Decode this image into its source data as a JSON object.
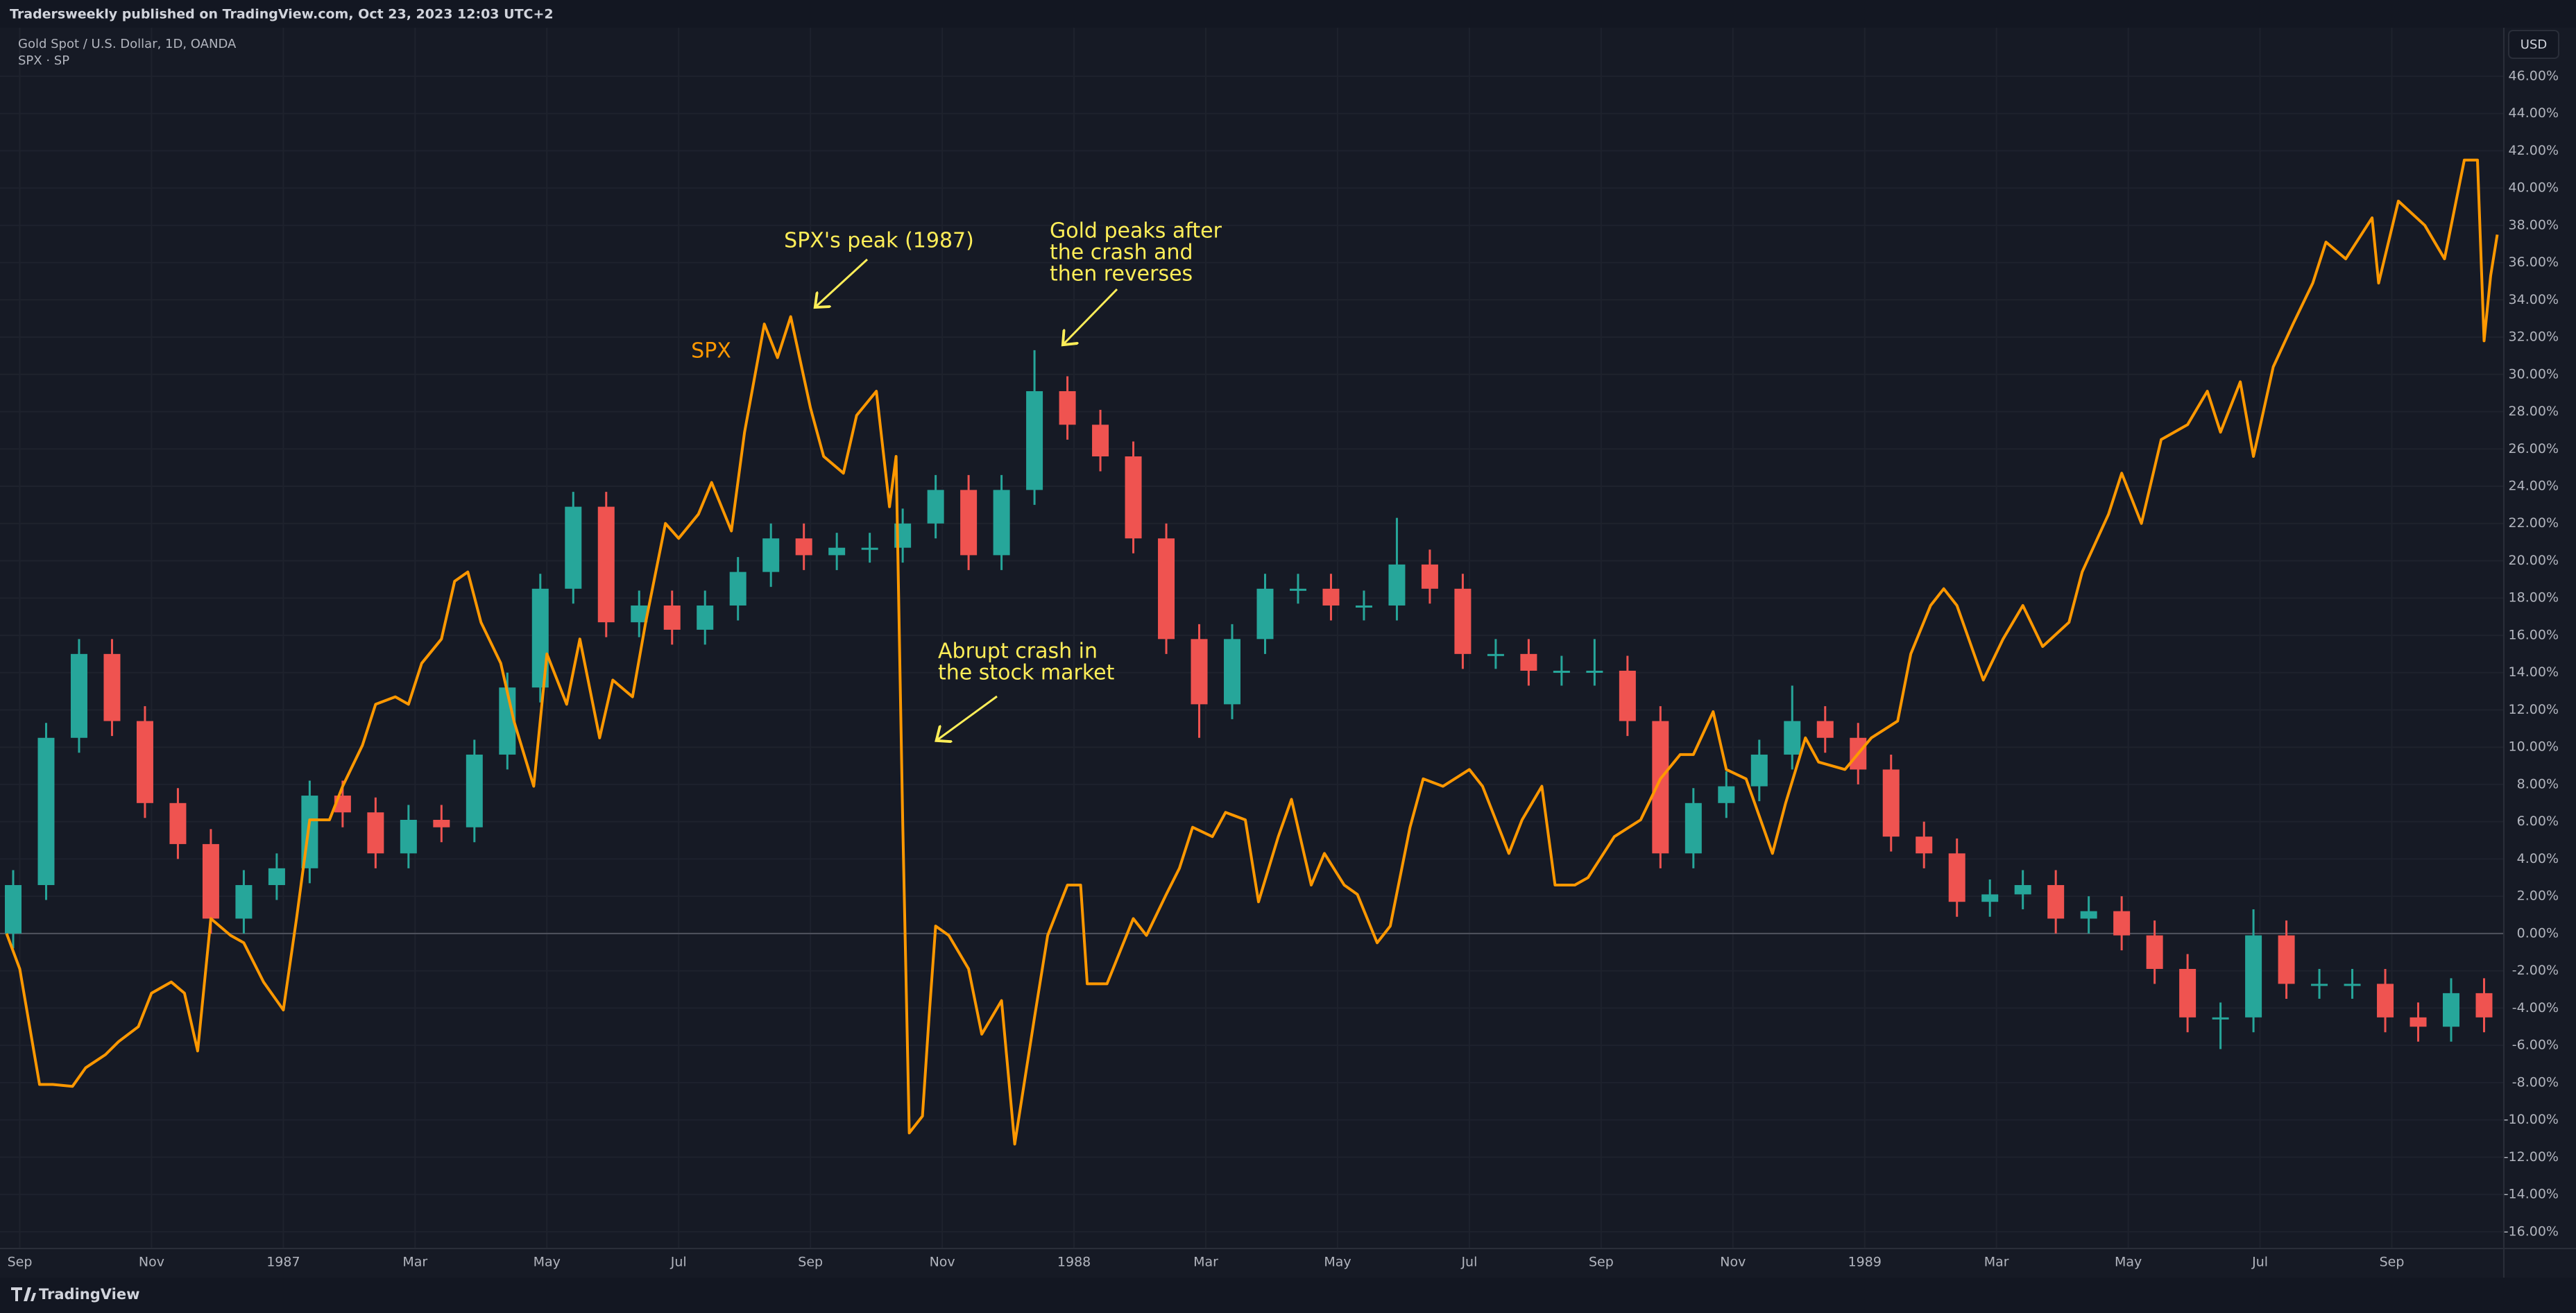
{
  "chart_data": {
    "type": "combo",
    "header": "Tradersweekly published on TradingView.com, Oct 23, 2023 12:03 UTC+2",
    "currency": "USD",
    "brand": "TradingView",
    "grid": true,
    "xlim": [
      -0.3,
      37.7
    ],
    "ylim": [
      -16.9,
      48.6
    ],
    "xticks": [
      {
        "value": 0,
        "label": "Sep"
      },
      {
        "value": 2,
        "label": "Nov"
      },
      {
        "value": 4,
        "label": "1987"
      },
      {
        "value": 6,
        "label": "Mar"
      },
      {
        "value": 8,
        "label": "May"
      },
      {
        "value": 10,
        "label": "Jul"
      },
      {
        "value": 12,
        "label": "Sep"
      },
      {
        "value": 14,
        "label": "Nov"
      },
      {
        "value": 16,
        "label": "1988"
      },
      {
        "value": 18,
        "label": "Mar"
      },
      {
        "value": 20,
        "label": "May"
      },
      {
        "value": 22,
        "label": "Jul"
      },
      {
        "value": 24,
        "label": "Sep"
      },
      {
        "value": 26,
        "label": "Nov"
      },
      {
        "value": 28,
        "label": "1989"
      },
      {
        "value": 30,
        "label": "Mar"
      },
      {
        "value": 32,
        "label": "May"
      },
      {
        "value": 34,
        "label": "Jul"
      },
      {
        "value": 36,
        "label": "Sep"
      }
    ],
    "yticks": [
      {
        "value": -16,
        "label": "-16.00%"
      },
      {
        "value": -14,
        "label": "-14.00%"
      },
      {
        "value": -12,
        "label": "-12.00%"
      },
      {
        "value": -10,
        "label": "-10.00%"
      },
      {
        "value": -8,
        "label": "-8.00%"
      },
      {
        "value": -6,
        "label": "-6.00%"
      },
      {
        "value": -4,
        "label": "-4.00%"
      },
      {
        "value": -2,
        "label": "-2.00%"
      },
      {
        "value": 0,
        "label": "0.00%"
      },
      {
        "value": 2,
        "label": "2.00%"
      },
      {
        "value": 4,
        "label": "4.00%"
      },
      {
        "value": 6,
        "label": "6.00%"
      },
      {
        "value": 8,
        "label": "8.00%"
      },
      {
        "value": 10,
        "label": "10.00%"
      },
      {
        "value": 12,
        "label": "12.00%"
      },
      {
        "value": 14,
        "label": "14.00%"
      },
      {
        "value": 16,
        "label": "16.00%"
      },
      {
        "value": 18,
        "label": "18.00%"
      },
      {
        "value": 20,
        "label": "20.00%"
      },
      {
        "value": 22,
        "label": "22.00%"
      },
      {
        "value": 24,
        "label": "24.00%"
      },
      {
        "value": 26,
        "label": "26.00%"
      },
      {
        "value": 28,
        "label": "28.00%"
      },
      {
        "value": 30,
        "label": "30.00%"
      },
      {
        "value": 32,
        "label": "32.00%"
      },
      {
        "value": 34,
        "label": "34.00%"
      },
      {
        "value": 36,
        "label": "36.00%"
      },
      {
        "value": 38,
        "label": "38.00%"
      },
      {
        "value": 40,
        "label": "40.00%"
      },
      {
        "value": 42,
        "label": "42.00%"
      },
      {
        "value": 44,
        "label": "44.00%"
      },
      {
        "value": 46,
        "label": "46.00%"
      }
    ],
    "series": [
      {
        "name": "Gold Spot / U.S. Dollar, 1D, OANDA",
        "type": "candlestick",
        "up_color": "#26a69a",
        "down_color": "#ef5350",
        "x": [
          -0.1,
          0.4,
          0.9,
          1.4,
          1.9,
          2.4,
          2.9,
          3.4,
          3.9,
          4.4,
          4.9,
          5.4,
          5.9,
          6.4,
          6.9,
          7.4,
          7.9,
          8.4,
          8.9,
          9.4,
          9.9,
          10.4,
          10.9,
          11.4,
          11.9,
          12.4,
          12.9,
          13.4,
          13.9,
          14.4,
          14.9,
          15.4,
          15.9,
          16.4,
          16.9,
          17.4,
          17.9,
          18.4,
          18.9,
          19.4,
          19.9,
          20.4,
          20.9,
          21.4,
          21.9,
          22.4,
          22.9,
          23.4,
          23.9,
          24.4,
          24.9,
          25.4,
          25.9,
          26.4,
          26.9,
          27.4,
          27.9,
          28.4,
          28.9,
          29.4,
          29.9,
          30.4,
          30.9,
          31.4,
          31.9,
          32.4,
          32.9,
          33.4,
          33.9,
          34.4,
          34.9,
          35.4,
          35.9,
          36.4,
          36.9,
          37.4
        ],
        "open": [
          0.0,
          2.6,
          10.5,
          15.0,
          11.4,
          7.0,
          4.8,
          0.8,
          2.6,
          3.5,
          7.4,
          6.5,
          4.3,
          6.1,
          5.7,
          9.6,
          13.2,
          18.5,
          22.9,
          16.7,
          17.6,
          16.3,
          17.6,
          19.4,
          21.2,
          20.3,
          20.7,
          20.7,
          22.0,
          23.8,
          20.3,
          23.8,
          29.1,
          27.3,
          25.6,
          21.2,
          15.8,
          12.3,
          15.8,
          18.5,
          18.5,
          17.6,
          17.6,
          19.8,
          18.5,
          15.0,
          15.0,
          14.1,
          14.1,
          14.1,
          11.4,
          4.3,
          7.0,
          7.9,
          9.6,
          11.4,
          10.5,
          8.8,
          5.2,
          4.3,
          1.7,
          2.1,
          2.6,
          0.8,
          1.2,
          -0.1,
          -1.9,
          -4.5,
          -4.5,
          -0.1,
          -2.7,
          -2.7,
          -2.7,
          -4.5,
          -5.0,
          -3.2
        ],
        "high": [
          3.4,
          11.3,
          15.8,
          15.8,
          12.2,
          7.8,
          5.6,
          3.4,
          4.3,
          8.2,
          8.2,
          7.3,
          6.9,
          6.9,
          10.4,
          14.0,
          19.3,
          23.7,
          23.7,
          18.4,
          18.4,
          18.4,
          20.2,
          22.0,
          22.0,
          21.5,
          21.5,
          22.8,
          24.6,
          24.6,
          24.6,
          31.3,
          29.9,
          28.1,
          26.4,
          22.0,
          16.6,
          16.6,
          19.3,
          19.3,
          19.3,
          18.4,
          22.3,
          20.6,
          19.3,
          15.8,
          15.8,
          14.9,
          15.8,
          14.9,
          12.2,
          7.8,
          8.7,
          10.4,
          13.3,
          12.2,
          11.3,
          9.6,
          6.0,
          5.1,
          2.9,
          3.4,
          3.4,
          2.0,
          2.0,
          0.7,
          -1.1,
          -3.7,
          1.3,
          0.7,
          -1.9,
          -1.9,
          -1.9,
          -3.7,
          -2.4,
          -2.4
        ],
        "low": [
          -0.8,
          1.8,
          9.7,
          10.6,
          6.2,
          4.0,
          0.0,
          0.0,
          1.8,
          2.7,
          5.7,
          3.5,
          3.5,
          4.9,
          4.9,
          8.8,
          12.4,
          17.7,
          15.9,
          15.9,
          15.5,
          15.5,
          16.8,
          18.6,
          19.5,
          19.5,
          19.9,
          19.9,
          21.2,
          19.5,
          19.5,
          23.0,
          26.5,
          24.8,
          20.4,
          15.0,
          10.5,
          11.5,
          15.0,
          17.7,
          16.8,
          16.8,
          16.8,
          17.7,
          14.2,
          14.2,
          13.3,
          13.3,
          13.3,
          10.6,
          3.5,
          3.5,
          6.2,
          7.1,
          8.8,
          9.7,
          8.0,
          4.4,
          3.5,
          0.9,
          0.9,
          1.3,
          0.0,
          0.0,
          -0.9,
          -2.7,
          -5.3,
          -6.2,
          -5.3,
          -3.5,
          -3.5,
          -3.5,
          -5.3,
          -5.8,
          -5.8,
          -5.3
        ],
        "close": [
          2.6,
          10.5,
          15.0,
          11.4,
          7.0,
          4.8,
          0.8,
          2.6,
          3.5,
          7.4,
          6.5,
          4.3,
          6.1,
          5.7,
          9.6,
          13.2,
          18.5,
          22.9,
          16.7,
          17.6,
          16.3,
          17.6,
          19.4,
          21.2,
          20.3,
          20.7,
          20.7,
          22.0,
          23.8,
          20.3,
          23.8,
          29.1,
          27.3,
          25.6,
          21.2,
          15.8,
          12.3,
          15.8,
          18.5,
          18.5,
          17.6,
          17.6,
          19.8,
          18.5,
          15.0,
          15.0,
          14.1,
          14.1,
          14.1,
          11.4,
          4.3,
          7.0,
          7.9,
          9.6,
          11.4,
          10.5,
          8.8,
          5.2,
          4.3,
          1.7,
          2.1,
          2.6,
          0.8,
          1.2,
          -0.1,
          -1.9,
          -4.5,
          -4.5,
          -0.1,
          -2.7,
          -2.7,
          -2.7,
          -4.5,
          -5.0,
          -3.2,
          -4.5
        ]
      },
      {
        "name": "SPX · SP",
        "type": "line",
        "color": "#ff9800",
        "x": [
          -0.2,
          0.0,
          0.3,
          0.5,
          0.8,
          1.0,
          1.3,
          1.5,
          1.8,
          2.0,
          2.3,
          2.5,
          2.7,
          2.9,
          3.2,
          3.4,
          3.7,
          4.0,
          4.2,
          4.4,
          4.7,
          4.9,
          5.2,
          5.4,
          5.7,
          5.9,
          6.1,
          6.4,
          6.6,
          6.8,
          7.0,
          7.3,
          7.5,
          7.8,
          8.0,
          8.3,
          8.5,
          8.8,
          9.0,
          9.3,
          9.5,
          9.8,
          10.0,
          10.3,
          10.5,
          10.8,
          11.0,
          11.3,
          11.5,
          11.7,
          12.0,
          12.2,
          12.5,
          12.7,
          13.0,
          13.2,
          13.3,
          13.4,
          13.5,
          13.7,
          13.8,
          13.9,
          14.1,
          14.4,
          14.6,
          14.9,
          15.1,
          15.4,
          15.6,
          15.9,
          16.1,
          16.2,
          16.5,
          16.9,
          17.1,
          17.4,
          17.6,
          17.8,
          18.1,
          18.3,
          18.6,
          18.8,
          19.1,
          19.3,
          19.6,
          19.8,
          20.1,
          20.3,
          20.6,
          20.8,
          21.1,
          21.3,
          21.6,
          22.0,
          22.2,
          22.6,
          22.8,
          23.1,
          23.3,
          23.6,
          23.8,
          24.2,
          24.6,
          24.9,
          25.2,
          25.4,
          25.7,
          25.9,
          26.2,
          26.6,
          26.8,
          27.1,
          27.3,
          27.7,
          28.1,
          28.5,
          28.7,
          29.0,
          29.2,
          29.4,
          29.8,
          30.1,
          30.4,
          30.7,
          31.1,
          31.3,
          31.7,
          31.9,
          32.2,
          32.5,
          32.9,
          33.2,
          33.4,
          33.7,
          33.9,
          34.2,
          34.5,
          34.8,
          35.0,
          35.3,
          35.7,
          35.8,
          36.1,
          36.5,
          36.8,
          37.1,
          37.3,
          37.4,
          37.5,
          37.6
        ],
        "values": [
          0.0,
          -1.9,
          -8.1,
          -8.1,
          -8.2,
          -7.2,
          -6.5,
          -5.8,
          -5.0,
          -3.2,
          -2.6,
          -3.2,
          -6.3,
          0.8,
          -0.1,
          -0.5,
          -2.6,
          -4.1,
          0.8,
          6.1,
          6.1,
          7.9,
          10.1,
          12.3,
          12.7,
          12.3,
          14.5,
          15.8,
          18.9,
          19.4,
          16.7,
          14.5,
          11.4,
          7.9,
          15.0,
          12.3,
          15.8,
          10.5,
          13.6,
          12.7,
          16.7,
          22.0,
          21.2,
          22.5,
          24.2,
          21.6,
          26.9,
          32.7,
          30.9,
          33.1,
          28.2,
          25.6,
          24.7,
          27.8,
          29.1,
          22.9,
          25.6,
          6.1,
          -10.7,
          -9.8,
          -4.5,
          0.4,
          -0.1,
          -1.9,
          -5.4,
          -3.6,
          -11.3,
          -4.5,
          -0.1,
          2.6,
          2.6,
          -2.7,
          -2.7,
          0.8,
          -0.1,
          2.1,
          3.5,
          5.7,
          5.2,
          6.5,
          6.1,
          1.7,
          5.2,
          7.2,
          2.6,
          4.3,
          2.6,
          2.1,
          -0.5,
          0.4,
          5.7,
          8.3,
          7.9,
          8.8,
          7.9,
          4.3,
          6.1,
          7.9,
          2.6,
          2.6,
          3.0,
          5.2,
          6.1,
          8.3,
          9.6,
          9.6,
          11.9,
          8.8,
          8.3,
          4.3,
          7.0,
          10.5,
          9.2,
          8.8,
          10.5,
          11.4,
          15.0,
          17.6,
          18.5,
          17.6,
          13.6,
          15.8,
          17.6,
          15.4,
          16.7,
          19.4,
          22.5,
          24.7,
          22.0,
          26.5,
          27.3,
          29.1,
          26.9,
          29.6,
          25.6,
          30.4,
          32.7,
          34.9,
          37.1,
          36.2,
          38.4,
          34.9,
          39.3,
          38.0,
          36.2,
          41.5,
          41.5,
          31.8,
          35.3,
          37.5
        ]
      }
    ],
    "annotations": [
      {
        "lines": [
          "SPX's peak (1987)"
        ]
      },
      {
        "lines": [
          "Gold peaks after",
          "the crash and",
          "then reverses"
        ]
      },
      {
        "lines": [
          "Abrupt crash in",
          "the stock market"
        ]
      },
      {
        "lines": [
          "SPX"
        ]
      }
    ]
  }
}
